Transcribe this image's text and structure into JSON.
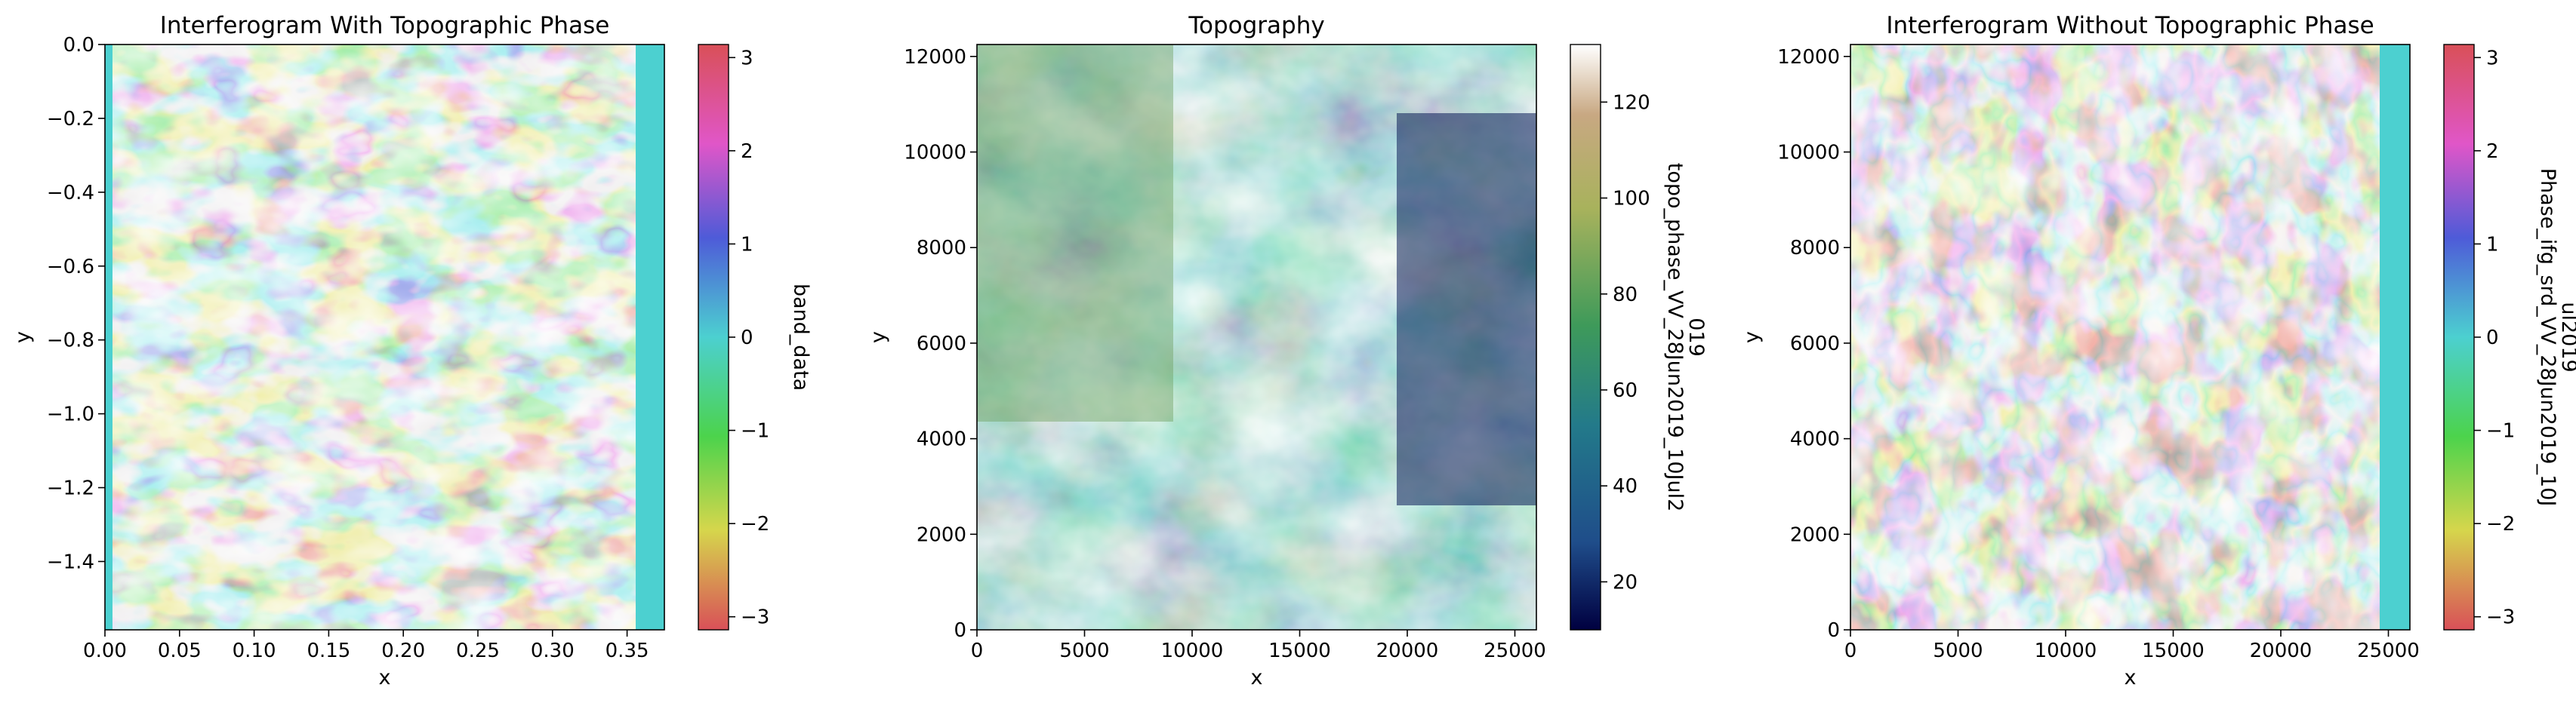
{
  "chart_data": [
    {
      "type": "heatmap",
      "title": "Interferogram With Topographic Phase",
      "xlabel": "x",
      "ylabel": "y",
      "xlim": [
        0,
        0.375
      ],
      "ylim": [
        -1.585,
        0
      ],
      "xticks": [
        "0.00",
        "0.05",
        "0.10",
        "0.15",
        "0.20",
        "0.25",
        "0.30",
        "0.35"
      ],
      "yticks": [
        "0.0",
        "−0.2",
        "−0.4",
        "−0.6",
        "−0.8",
        "−1.0",
        "−1.2",
        "−1.4"
      ],
      "colorbar": {
        "label": "band_data",
        "range": [
          -3.14,
          3.14
        ],
        "ticks": [
          "3",
          "2",
          "1",
          "0",
          "−1",
          "−2",
          "−3"
        ],
        "colormap": [
          "#d95058",
          "#e056c8",
          "#4e5bd8",
          "#4cd0d0",
          "#4cd34c",
          "#d6d64c",
          "#d95058"
        ]
      },
      "data_extent_x": [
        0,
        0.355
      ]
    },
    {
      "type": "heatmap",
      "title": "Topography",
      "xlabel": "x",
      "ylabel": "y",
      "xlim": [
        0,
        26000
      ],
      "ylim": [
        0,
        12250
      ],
      "xticks": [
        "0",
        "5000",
        "10000",
        "15000",
        "20000",
        "25000"
      ],
      "yticks": [
        "12000",
        "10000",
        "8000",
        "6000",
        "4000",
        "2000",
        "0"
      ],
      "colorbar": {
        "label_lines": [
          "topo_phase_VV_28Jun2019_10Jul2",
          "019"
        ],
        "range": [
          10,
          132
        ],
        "ticks": [
          "120",
          "100",
          "80",
          "60",
          "40",
          "20"
        ],
        "colormap": [
          "#000040",
          "#1f4d8a",
          "#237a8a",
          "#3e9a5a",
          "#a8b25c",
          "#c8a882",
          "#ffffff"
        ]
      }
    },
    {
      "type": "heatmap",
      "title": "Interferogram Without Topographic Phase",
      "xlabel": "x",
      "ylabel": "y",
      "xlim": [
        0,
        26000
      ],
      "ylim": [
        0,
        12250
      ],
      "xticks": [
        "0",
        "5000",
        "10000",
        "15000",
        "20000",
        "25000"
      ],
      "yticks": [
        "12000",
        "10000",
        "8000",
        "6000",
        "4000",
        "2000",
        "0"
      ],
      "colorbar": {
        "label_lines": [
          "Phase_ifg_srd_VV_28Jun2019_10J",
          "ul2019"
        ],
        "range": [
          -3.14,
          3.14
        ],
        "ticks": [
          "3",
          "2",
          "1",
          "0",
          "−1",
          "−2",
          "−3"
        ],
        "colormap": [
          "#d95058",
          "#e056c8",
          "#4e5bd8",
          "#4cd0d0",
          "#4cd34c",
          "#d6d64c",
          "#d95058"
        ]
      }
    }
  ]
}
